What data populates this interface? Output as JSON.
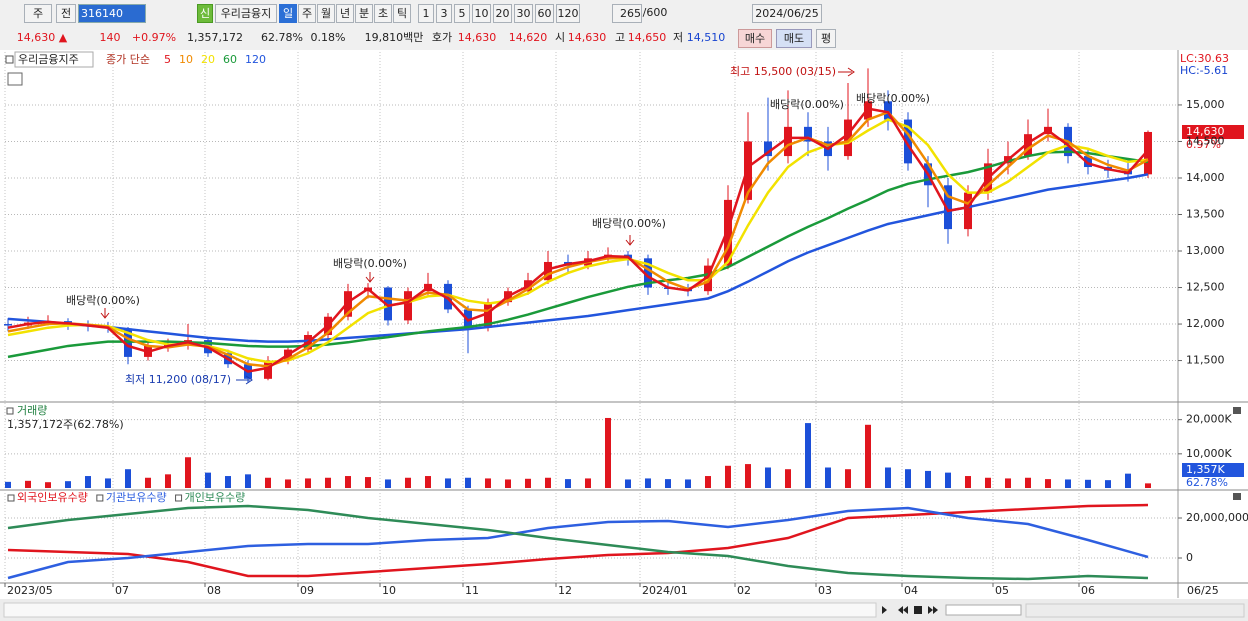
{
  "toolbar": {
    "market": "주",
    "scope": "전",
    "code": "316140",
    "badge": "신",
    "name": "우리금융지",
    "periods": [
      "일",
      "주",
      "월",
      "년",
      "분",
      "초",
      "틱"
    ],
    "intervals": [
      "1",
      "3",
      "5",
      "10",
      "20",
      "30",
      "60",
      "120"
    ],
    "count": "265",
    "max": "/600",
    "date": "2024/06/25"
  },
  "quote": {
    "price": "14,630 ▲",
    "change": "140",
    "change_rate": "+0.97%",
    "volume": "1,357,172",
    "volume_ratio": "62.78%",
    "turnover": "0.18%",
    "amount": "19,810백만",
    "bid_label": "호가",
    "ask": "14,630",
    "bid": "14,620",
    "open_label": "시",
    "open": "14,630",
    "high_label": "고",
    "high": "14,650",
    "low_label": "저",
    "low": "14,510",
    "buy": "매수",
    "sell": "매도",
    "avg": "평"
  },
  "chart_data": {
    "type": "candlestick",
    "xlim": [
      -0.15,
      58.5
    ],
    "xticks": [
      {
        "value": -0.15,
        "label": "2023/05"
      },
      {
        "value": 5.25,
        "label": "07"
      },
      {
        "value": 9.85,
        "label": "08"
      },
      {
        "value": 14.5,
        "label": "09"
      },
      {
        "value": 18.6,
        "label": "10"
      },
      {
        "value": 22.75,
        "label": "11"
      },
      {
        "value": 27.4,
        "label": "12"
      },
      {
        "value": 31.6,
        "label": "2024/01"
      },
      {
        "value": 36.35,
        "label": "02"
      },
      {
        "value": 40.4,
        "label": "03"
      },
      {
        "value": 44.7,
        "label": "04"
      },
      {
        "value": 49.25,
        "label": "05"
      },
      {
        "value": 53.55,
        "label": "06"
      }
    ],
    "last_date": "06/25",
    "grid": true,
    "price": {
      "title": "우리금융지주",
      "legend_label": "종가 단순",
      "lc": "LC:30.63",
      "hc": "HC:-5.61",
      "price_tag": "14,630",
      "change_tag": "0.97%",
      "ylim": [
        10960,
        15725
      ],
      "yticks": [
        {
          "value": 11500,
          "label": "11,500"
        },
        {
          "value": 12000,
          "label": "12,000"
        },
        {
          "value": 12500,
          "label": "12,500"
        },
        {
          "value": 13000,
          "label": "13,000"
        },
        {
          "value": 13500,
          "label": "13,500"
        },
        {
          "value": 14000,
          "label": "14,000"
        },
        {
          "value": 14500,
          "label": "14,500"
        },
        {
          "value": 15000,
          "label": "15,000"
        }
      ],
      "up_color": "#e0151e",
      "down_color": "#1c4fd8",
      "candles": [
        [
          12000,
          12080,
          11900,
          11980
        ],
        [
          11980,
          12100,
          11930,
          12020
        ],
        [
          12020,
          12120,
          11980,
          12040
        ],
        [
          12040,
          12080,
          11920,
          11990
        ],
        [
          11990,
          12050,
          11900,
          11970
        ],
        [
          11970,
          12030,
          11880,
          11940
        ],
        [
          11940,
          11960,
          11450,
          11550
        ],
        [
          11550,
          11780,
          11500,
          11700
        ],
        [
          11700,
          11800,
          11620,
          11720
        ],
        [
          11720,
          12000,
          11650,
          11780
        ],
        [
          11780,
          11820,
          11550,
          11600
        ],
        [
          11600,
          11650,
          11400,
          11450
        ],
        [
          11450,
          11500,
          11200,
          11250
        ],
        [
          11250,
          11560,
          11230,
          11500
        ],
        [
          11500,
          11700,
          11450,
          11650
        ],
        [
          11650,
          11900,
          11600,
          11850
        ],
        [
          11850,
          12150,
          11800,
          12100
        ],
        [
          12100,
          12550,
          12050,
          12450
        ],
        [
          12450,
          12560,
          12350,
          12500
        ],
        [
          12500,
          12520,
          11980,
          12050
        ],
        [
          12050,
          12500,
          12000,
          12450
        ],
        [
          12450,
          12700,
          12400,
          12550
        ],
        [
          12550,
          12600,
          12150,
          12200
        ],
        [
          12200,
          12250,
          11600,
          11950
        ],
        [
          11950,
          12350,
          11900,
          12300
        ],
        [
          12300,
          12500,
          12250,
          12450
        ],
        [
          12450,
          12700,
          12400,
          12600
        ],
        [
          12600,
          13000,
          12550,
          12850
        ],
        [
          12850,
          12950,
          12700,
          12800
        ],
        [
          12800,
          13000,
          12750,
          12900
        ],
        [
          12900,
          13050,
          12850,
          12950
        ],
        [
          12950,
          13000,
          12800,
          12900
        ],
        [
          12900,
          12950,
          12400,
          12500
        ],
        [
          12500,
          12600,
          12400,
          12480
        ],
        [
          12480,
          12550,
          12380,
          12450
        ],
        [
          12450,
          12900,
          12400,
          12800
        ],
        [
          12800,
          13900,
          12750,
          13700
        ],
        [
          13700,
          14900,
          13650,
          14500
        ],
        [
          14500,
          15100,
          14100,
          14300
        ],
        [
          14300,
          15200,
          14200,
          14700
        ],
        [
          14700,
          14900,
          14300,
          14500
        ],
        [
          14500,
          14700,
          14100,
          14300
        ],
        [
          14300,
          15300,
          14250,
          14800
        ],
        [
          14800,
          15500,
          14700,
          15050
        ],
        [
          15050,
          15200,
          14650,
          14800
        ],
        [
          14800,
          14900,
          14100,
          14200
        ],
        [
          14200,
          14300,
          13600,
          13900
        ],
        [
          13900,
          14000,
          13100,
          13300
        ],
        [
          13300,
          13900,
          13200,
          13800
        ],
        [
          13800,
          14400,
          13700,
          14200
        ],
        [
          14200,
          14500,
          14050,
          14300
        ],
        [
          14300,
          14800,
          14250,
          14600
        ],
        [
          14600,
          14950,
          14500,
          14700
        ],
        [
          14700,
          14750,
          14200,
          14300
        ],
        [
          14300,
          14400,
          14050,
          14150
        ],
        [
          14150,
          14250,
          14000,
          14100
        ],
        [
          14100,
          14250,
          13950,
          14050
        ],
        [
          14050,
          14650,
          14000,
          14630
        ]
      ],
      "moving_averages": [
        {
          "name": "5",
          "color": "#e0151e",
          "values": [
            11950,
            12000,
            12030,
            12010,
            11980,
            11950,
            11700,
            11620,
            11700,
            11750,
            11680,
            11520,
            11350,
            11400,
            11580,
            11750,
            11980,
            12300,
            12480,
            12250,
            12300,
            12500,
            12350,
            12050,
            12150,
            12380,
            12520,
            12750,
            12820,
            12860,
            12930,
            12920,
            12650,
            12500,
            12460,
            12650,
            13300,
            14150,
            14350,
            14550,
            14550,
            14400,
            14600,
            14950,
            14900,
            14450,
            14050,
            13550,
            13600,
            14000,
            14250,
            14480,
            14650,
            14450,
            14200,
            14120,
            14070,
            14380
          ]
        },
        {
          "name": "10",
          "color": "#f08a00",
          "values": [
            11900,
            11950,
            12000,
            12010,
            11990,
            11960,
            11800,
            11700,
            11680,
            11720,
            11690,
            11580,
            11450,
            11420,
            11520,
            11680,
            11880,
            12150,
            12380,
            12350,
            12320,
            12430,
            12400,
            12200,
            12180,
            12320,
            12480,
            12680,
            12780,
            12850,
            12900,
            12910,
            12750,
            12580,
            12480,
            12580,
            13050,
            13800,
            14200,
            14450,
            14550,
            14450,
            14500,
            14800,
            14900,
            14600,
            14200,
            13750,
            13650,
            13900,
            14150,
            14400,
            14580,
            14500,
            14300,
            14180,
            14100,
            14250
          ]
        },
        {
          "name": "20",
          "color": "#f2e200",
          "values": [
            11850,
            11900,
            11950,
            11980,
            11990,
            11970,
            11880,
            11780,
            11720,
            11720,
            11700,
            11630,
            11530,
            11480,
            11500,
            11600,
            11750,
            11950,
            12150,
            12250,
            12300,
            12380,
            12400,
            12320,
            12280,
            12320,
            12420,
            12580,
            12700,
            12790,
            12850,
            12890,
            12820,
            12700,
            12600,
            12600,
            12850,
            13350,
            13800,
            14150,
            14350,
            14450,
            14480,
            14650,
            14800,
            14700,
            14450,
            14050,
            13800,
            13800,
            13950,
            14150,
            14350,
            14450,
            14400,
            14300,
            14220,
            14250
          ]
        },
        {
          "name": "60",
          "color": "#1a9a3a",
          "values": [
            11550,
            11600,
            11650,
            11700,
            11730,
            11760,
            11760,
            11760,
            11760,
            11750,
            11740,
            11720,
            11700,
            11690,
            11690,
            11700,
            11720,
            11750,
            11790,
            11820,
            11860,
            11900,
            11930,
            11960,
            12000,
            12060,
            12130,
            12210,
            12290,
            12370,
            12440,
            12510,
            12560,
            12600,
            12630,
            12680,
            12780,
            12920,
            13060,
            13200,
            13330,
            13450,
            13580,
            13700,
            13830,
            13920,
            13980,
            14030,
            14080,
            14150,
            14230,
            14300,
            14350,
            14360,
            14340,
            14300,
            14260,
            14220
          ]
        },
        {
          "name": "120",
          "color": "#2255dd",
          "values": [
            12070,
            12050,
            12030,
            12000,
            11980,
            11960,
            11930,
            11900,
            11870,
            11840,
            11810,
            11790,
            11770,
            11760,
            11760,
            11770,
            11790,
            11810,
            11830,
            11850,
            11870,
            11890,
            11910,
            11930,
            11960,
            11990,
            12020,
            12050,
            12080,
            12110,
            12150,
            12190,
            12230,
            12270,
            12310,
            12350,
            12450,
            12580,
            12720,
            12860,
            12980,
            13080,
            13180,
            13280,
            13370,
            13430,
            13490,
            13550,
            13600,
            13660,
            13720,
            13780,
            13840,
            13880,
            13920,
            13960,
            14000,
            14050
          ]
        }
      ],
      "annotations": {
        "high": "최고 15,500 (03/15)",
        "low": "최저 11,200 (08/17)",
        "dividend": [
          "배당락(0.00%)",
          "배당락(0.00%)",
          "배당락(0.00%)",
          "배당락(0.00%)",
          "배당락(0.00%)"
        ]
      }
    },
    "volume": {
      "title": "거래량",
      "summary": "1,357,172주(62.78%)",
      "tag": "1,357K",
      "ratio_tag": "62.78%",
      "ylim": [
        0,
        24000
      ],
      "yticks": [
        {
          "value": 10000,
          "label": "10,000K"
        },
        {
          "value": 20000,
          "label": "20,000K"
        }
      ],
      "values": [
        1800,
        2100,
        1700,
        2000,
        3500,
        2800,
        5500,
        3000,
        4000,
        9000,
        4500,
        3500,
        4000,
        3000,
        2500,
        2800,
        3000,
        3500,
        3200,
        2500,
        3000,
        3500,
        2800,
        3000,
        2800,
        2500,
        2700,
        3000,
        2600,
        2800,
        20500,
        2500,
        2800,
        2600,
        2500,
        3500,
        6500,
        7000,
        6000,
        5500,
        19000,
        6000,
        5500,
        18500,
        6000,
        5500,
        5000,
        4500,
        3500,
        3000,
        2800,
        3000,
        2600,
        2500,
        2400,
        2300,
        4200,
        1357
      ]
    },
    "holdings": {
      "x": [
        0,
        3,
        6,
        9,
        12,
        15,
        18,
        21,
        24,
        27,
        30,
        33,
        36,
        39,
        42,
        45,
        48,
        51,
        54,
        57
      ],
      "ylim": [
        -11500000,
        33000000
      ],
      "yticks": [
        0,
        {
          "value": 20000000,
          "label": "20,000,000"
        }
      ],
      "series": [
        {
          "name": "외국인보유수량",
          "color": "#e0151e",
          "values": [
            4000000,
            3000000,
            2000000,
            -2000000,
            -9000000,
            -9000000,
            -7000000,
            -5000000,
            -3000000,
            -500000,
            1500000,
            2500000,
            5000000,
            10000000,
            20000000,
            21500000,
            23000000,
            24500000,
            26000000,
            26500000
          ]
        },
        {
          "name": "기관보유수량",
          "color": "#2e5fe0",
          "values": [
            -10000000,
            -2000000,
            0,
            3000000,
            6000000,
            7000000,
            7000000,
            9000000,
            10000000,
            15000000,
            18000000,
            18500000,
            15500000,
            19000000,
            23500000,
            25000000,
            20000000,
            17000000,
            9000000,
            500000
          ]
        },
        {
          "name": "개인보유수량",
          "color": "#2e8b57",
          "values": [
            15000000,
            19000000,
            22000000,
            25000000,
            26000000,
            24000000,
            20000000,
            17000000,
            14000000,
            10000000,
            6500000,
            3000000,
            1000000,
            -4000000,
            -7500000,
            -9000000,
            -10000000,
            -10500000,
            -9000000,
            -10000000
          ]
        }
      ]
    }
  }
}
